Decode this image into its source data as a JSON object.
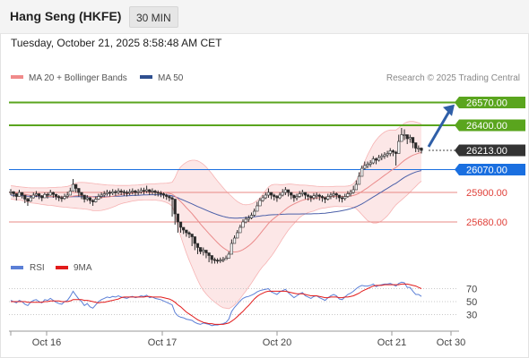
{
  "header": {
    "title": "Hang Seng (HKFE)",
    "period": "30 MIN"
  },
  "timestamp": "Tuesday, October 21, 2025 8:58:48 AM CET",
  "chart_data": {
    "type": "line",
    "legend": [
      {
        "name": "MA 20 + Bollinger Bands",
        "color": "#f08a8a"
      },
      {
        "name": "MA 50",
        "color": "#2f4f8f"
      }
    ],
    "credit": "Research © 2025 Trading Central",
    "x_labels": [
      "Oct 16",
      "Oct 17",
      "Oct 20",
      "Oct 21",
      "Oct 30"
    ],
    "ylim": [
      25500,
      26700
    ],
    "levels": [
      {
        "label": "26570.00",
        "value": 26570,
        "kind": "resistance",
        "color": "#5aa51e"
      },
      {
        "label": "26400.00",
        "value": 26400,
        "kind": "resistance",
        "color": "#5aa51e"
      },
      {
        "label": "26213.00",
        "value": 26213,
        "kind": "last",
        "color": "#333333"
      },
      {
        "label": "26070.00",
        "value": 26070,
        "kind": "pivot",
        "color": "#1a6fe0"
      },
      {
        "label": "25900.00",
        "value": 25900,
        "kind": "support",
        "color": "#e0413a"
      },
      {
        "label": "25680.00",
        "value": 25680,
        "kind": "support",
        "color": "#e0413a"
      }
    ],
    "price_close": [
      25905,
      25890,
      25870,
      25900,
      25880,
      25850,
      25835,
      25860,
      25880,
      25890,
      25875,
      25860,
      25885,
      25880,
      25900,
      25885,
      25870,
      25860,
      25855,
      25870,
      25880,
      25910,
      25960,
      25930,
      25900,
      25880,
      25850,
      25860,
      25840,
      25830,
      25850,
      25870,
      25880,
      25890,
      25900,
      25895,
      25905,
      25900,
      25910,
      25905,
      25900,
      25895,
      25905,
      25910,
      25900,
      25905,
      25915,
      25910,
      25920,
      25905,
      25910,
      25900,
      25895,
      25890,
      25880,
      25870,
      25860,
      25850,
      25740,
      25680,
      25640,
      25620,
      25600,
      25590,
      25570,
      25520,
      25490,
      25460,
      25470,
      25450,
      25430,
      25400,
      25395,
      25390,
      25395,
      25400,
      25410,
      25440,
      25520,
      25560,
      25600,
      25640,
      25680,
      25700,
      25710,
      25730,
      25760,
      25800,
      25840,
      25860,
      25880,
      25900,
      25880,
      25870,
      25860,
      25880,
      25900,
      25920,
      25900,
      25880,
      25860,
      25870,
      25890,
      25900,
      25880,
      25870,
      25860,
      25875,
      25880,
      25870,
      25860,
      25850,
      25870,
      25880,
      25890,
      25880,
      25860,
      25855,
      25870,
      25890,
      25900,
      25920,
      25960,
      26020,
      26080,
      26100,
      26110,
      26120,
      26150,
      26140,
      26160,
      26170,
      26180,
      26190,
      26210,
      26200,
      26190,
      26280,
      26330,
      26330,
      26300,
      26310,
      26270,
      26230,
      26230,
      26213
    ],
    "price_high": [
      25925,
      25910,
      25895,
      25920,
      25900,
      25870,
      25860,
      25880,
      25900,
      25910,
      25895,
      25880,
      25900,
      25900,
      25920,
      25905,
      25890,
      25880,
      25875,
      25890,
      25905,
      25935,
      26000,
      25960,
      25920,
      25900,
      25870,
      25880,
      25865,
      25850,
      25870,
      25890,
      25900,
      25910,
      25920,
      25915,
      25925,
      25920,
      25930,
      25925,
      25920,
      25915,
      25925,
      25930,
      25920,
      25925,
      25935,
      25935,
      25950,
      25925,
      25930,
      25920,
      25915,
      25910,
      25900,
      25890,
      25880,
      25870,
      25760,
      25700,
      25660,
      25640,
      25620,
      25610,
      25590,
      25540,
      25510,
      25480,
      25490,
      25470,
      25450,
      25420,
      25415,
      25410,
      25415,
      25420,
      25430,
      25460,
      25550,
      25580,
      25620,
      25660,
      25700,
      25720,
      25730,
      25750,
      25780,
      25830,
      25860,
      25880,
      25900,
      25930,
      25900,
      25890,
      25880,
      25900,
      25925,
      25940,
      25920,
      25900,
      25880,
      25890,
      25910,
      25920,
      25900,
      25890,
      25880,
      25895,
      25900,
      25890,
      25880,
      25870,
      25890,
      25900,
      25910,
      25900,
      25880,
      25875,
      25890,
      25910,
      25920,
      25950,
      25990,
      26050,
      26100,
      26130,
      26130,
      26140,
      26170,
      26160,
      26180,
      26190,
      26200,
      26210,
      26230,
      26220,
      26210,
      26330,
      26380,
      26370,
      26330,
      26330,
      26300,
      26250,
      26250,
      26235
    ],
    "price_low": [
      25880,
      25865,
      25840,
      25875,
      25855,
      25820,
      25800,
      25830,
      25855,
      25865,
      25850,
      25835,
      25860,
      25855,
      25875,
      25860,
      25845,
      25835,
      25830,
      25845,
      25855,
      25885,
      25920,
      25900,
      25870,
      25850,
      25825,
      25835,
      25815,
      25800,
      25825,
      25845,
      25855,
      25865,
      25875,
      25870,
      25880,
      25875,
      25885,
      25880,
      25875,
      25870,
      25880,
      25885,
      25875,
      25880,
      25890,
      25885,
      25895,
      25880,
      25885,
      25875,
      25870,
      25865,
      25855,
      25845,
      25835,
      25720,
      25660,
      25600,
      25600,
      25590,
      25570,
      25560,
      25500,
      25470,
      25440,
      25440,
      25430,
      25410,
      25380,
      25370,
      25370,
      25370,
      25375,
      25380,
      25400,
      25420,
      25470,
      25530,
      25570,
      25610,
      25650,
      25670,
      25680,
      25700,
      25720,
      25760,
      25800,
      25830,
      25850,
      25860,
      25850,
      25840,
      25830,
      25850,
      25870,
      25880,
      25870,
      25850,
      25830,
      25840,
      25860,
      25870,
      25850,
      25840,
      25830,
      25845,
      25850,
      25840,
      25830,
      25820,
      25840,
      25850,
      25860,
      25850,
      25830,
      25825,
      25840,
      25860,
      25870,
      25890,
      25920,
      25970,
      26040,
      26070,
      26080,
      26090,
      26110,
      26110,
      26130,
      26140,
      26150,
      26160,
      26170,
      26170,
      26100,
      26190,
      26280,
      26290,
      26260,
      26270,
      26230,
      26200,
      26200,
      26190
    ],
    "ma50": [
      25880,
      25879,
      25877,
      25876,
      25875,
      25874,
      25872,
      25871,
      25870,
      25870,
      25869,
      25868,
      25868,
      25867,
      25867,
      25867,
      25866,
      25866,
      25866,
      25866,
      25866,
      25867,
      25868,
      25869,
      25869,
      25869,
      25869,
      25869,
      25868,
      25868,
      25868,
      25868,
      25868,
      25869,
      25869,
      25870,
      25870,
      25871,
      25872,
      25873,
      25874,
      25875,
      25876,
      25877,
      25878,
      25879,
      25880,
      25881,
      25882,
      25883,
      25883,
      25883,
      25883,
      25882,
      25881,
      25880,
      25878,
      25875,
      25868,
      25860,
      25851,
      25842,
      25833,
      25824,
      25815,
      25805,
      25795,
      25786,
      25777,
      25768,
      25759,
      25750,
      25742,
      25734,
      25727,
      25721,
      25716,
      25712,
      25710,
      25709,
      25709,
      25710,
      25711,
      25713,
      25715,
      25717,
      25719,
      25721,
      25724,
      25727,
      25729,
      25731,
      25733,
      25734,
      25735,
      25736,
      25737,
      25738,
      25739,
      25739,
      25739,
      25739,
      25739,
      25740,
      25740,
      25740,
      25740,
      25741,
      25742,
      25743,
      25744,
      25745,
      25748,
      25751,
      25754,
      25757,
      25760,
      25764,
      25768,
      25773,
      25779,
      25786,
      25794,
      25804,
      25815,
      25827,
      25840,
      25853,
      25866,
      25879,
      25892,
      25905,
      25918,
      25931,
      25944,
      25957,
      25968,
      25983,
      25998,
      26012,
      26024,
      26035,
      26044,
      26052,
      26058,
      26063
    ],
    "ma20": [
      25900,
      25898,
      25895,
      25893,
      25890,
      25886,
      25882,
      25879,
      25877,
      25876,
      25874,
      25872,
      25871,
      25870,
      25870,
      25869,
      25868,
      25867,
      25866,
      25866,
      25867,
      25869,
      25873,
      25876,
      25877,
      25877,
      25875,
      25873,
      25870,
      25866,
      25864,
      25863,
      25863,
      25864,
      25866,
      25869,
      25872,
      25876,
      25880,
      25884,
      25887,
      25889,
      25892,
      25895,
      25897,
      25899,
      25900,
      25902,
      25903,
      25903,
      25904,
      25904,
      25903,
      25902,
      25900,
      25897,
      25893,
      25887,
      25872,
      25853,
      25832,
      25810,
      25787,
      25765,
      25742,
      25717,
      25691,
      25665,
      25640,
      25617,
      25593,
      25570,
      25548,
      25526,
      25506,
      25488,
      25474,
      25462,
      25458,
      25456,
      25458,
      25464,
      25474,
      25487,
      25502,
      25520,
      25541,
      25565,
      25591,
      25617,
      25643,
      25669,
      25690,
      25708,
      25724,
      25740,
      25757,
      25774,
      25790,
      25803,
      25814,
      25824,
      25834,
      25842,
      25847,
      25851,
      25853,
      25855,
      25858,
      25861,
      25863,
      25864,
      25866,
      25868,
      25870,
      25871,
      25870,
      25870,
      25870,
      25871,
      25873,
      25877,
      25884,
      25894,
      25907,
      25921,
      25935,
      25950,
      25966,
      25981,
      25996,
      26012,
      26028,
      26043,
      26059,
      26073,
      26086,
      26103,
      26122,
      26139,
      26153,
      26166,
      26177,
      26185,
      26192,
      26197
    ],
    "bb_upper": [
      25950,
      25948,
      25945,
      25942,
      25940,
      25938,
      25936,
      25935,
      25934,
      25934,
      25934,
      25934,
      25934,
      25935,
      25936,
      25937,
      25938,
      25939,
      25940,
      25942,
      25945,
      25952,
      25962,
      25970,
      25974,
      25975,
      25974,
      25972,
      25970,
      25967,
      25964,
      25962,
      25960,
      25958,
      25956,
      25955,
      25954,
      25953,
      25952,
      25952,
      25952,
      25952,
      25953,
      25954,
      25955,
      25956,
      25958,
      25960,
      25962,
      25963,
      25964,
      25965,
      25966,
      25967,
      25968,
      25969,
      25972,
      25976,
      26010,
      26060,
      26090,
      26110,
      26125,
      26135,
      26140,
      26140,
      26135,
      26125,
      26110,
      26090,
      26065,
      26040,
      26012,
      25985,
      25960,
      25935,
      25910,
      25890,
      25870,
      25850,
      25832,
      25820,
      25810,
      25808,
      25810,
      25815,
      25825,
      25840,
      25860,
      25885,
      25915,
      25940,
      25955,
      25960,
      25960,
      25958,
      25958,
      25960,
      25962,
      25962,
      25960,
      25957,
      25955,
      25955,
      25954,
      25952,
      25950,
      25948,
      25946,
      25945,
      25944,
      25943,
      25943,
      25944,
      25945,
      25946,
      25946,
      25946,
      25946,
      25948,
      25953,
      25965,
      25990,
      26030,
      26080,
      26130,
      26180,
      26220,
      26260,
      26290,
      26315,
      26335,
      26350,
      26360,
      26365,
      26365,
      26365,
      26380,
      26400,
      26415,
      26425,
      26430,
      26430,
      26425,
      26418,
      26410
    ],
    "bb_lower": [
      25850,
      25848,
      25845,
      25844,
      25840,
      25834,
      25828,
      25823,
      25820,
      25818,
      25814,
      25810,
      25808,
      25805,
      25804,
      25801,
      25798,
      25795,
      25792,
      25790,
      25789,
      25786,
      25784,
      25782,
      25780,
      25779,
      25776,
      25774,
      25770,
      25765,
      25764,
      25764,
      25766,
      25770,
      25776,
      25783,
      25790,
      25799,
      25808,
      25816,
      25822,
      25826,
      25831,
      25836,
      25839,
      25842,
      25842,
      25844,
      25844,
      25843,
      25844,
      25843,
      25840,
      25837,
      25832,
      25825,
      25814,
      25798,
      25734,
      25646,
      25574,
      25510,
      25449,
      25395,
      25344,
      25294,
      25247,
      25205,
      25170,
      25144,
      25121,
      25100,
      25084,
      25067,
      25052,
      25041,
      25038,
      25034,
      25046,
      25062,
      25084,
      25108,
      25138,
      25166,
      25194,
      25225,
      25257,
      25290,
      25322,
      25349,
      25371,
      25398,
      25425,
      25456,
      25488,
      25522,
      25556,
      25588,
      25618,
      25644,
      25668,
      25691,
      25713,
      25729,
      25740,
      25750,
      25756,
      25762,
      25770,
      25777,
      25782,
      25785,
      25789,
      25792,
      25795,
      25796,
      25794,
      25794,
      25794,
      25794,
      25793,
      25789,
      25778,
      25758,
      25734,
      25712,
      25690,
      25680,
      25672,
      25672,
      25677,
      25689,
      25706,
      25726,
      25753,
      25781,
      25807,
      25826,
      25844,
      25863,
      25881,
      25902,
      25924,
      25945,
      25966,
      25984
    ],
    "rsi": {
      "name": "RSI",
      "color": "#5b7fd6",
      "ma_name": "9MA",
      "ma_color": "#e21b1b",
      "levels": [
        70,
        50,
        30
      ],
      "ylim": [
        10,
        90
      ],
      "values": [
        52,
        50,
        48,
        52,
        50,
        46,
        44,
        49,
        52,
        53,
        50,
        48,
        53,
        52,
        55,
        52,
        49,
        47,
        46,
        50,
        52,
        58,
        66,
        60,
        54,
        50,
        44,
        47,
        42,
        40,
        45,
        50,
        53,
        55,
        57,
        56,
        58,
        57,
        59,
        57,
        56,
        55,
        57,
        58,
        56,
        57,
        59,
        58,
        60,
        56,
        57,
        55,
        54,
        53,
        51,
        49,
        47,
        45,
        33,
        28,
        26,
        25,
        23,
        22,
        21,
        18,
        16,
        15,
        17,
        16,
        15,
        13,
        14,
        14,
        15,
        16,
        18,
        23,
        35,
        41,
        46,
        51,
        55,
        57,
        58,
        60,
        62,
        65,
        67,
        68,
        69,
        70,
        65,
        63,
        61,
        65,
        67,
        69,
        64,
        60,
        56,
        59,
        62,
        64,
        59,
        57,
        55,
        58,
        59,
        56,
        54,
        52,
        56,
        59,
        61,
        59,
        54,
        53,
        57,
        61,
        63,
        66,
        70,
        73,
        75,
        74,
        74,
        75,
        77,
        73,
        75,
        76,
        77,
        77,
        78,
        76,
        74,
        78,
        80,
        79,
        72,
        72,
        66,
        61,
        61,
        58
      ],
      "ma_values": [
        50,
        50,
        50,
        50,
        50,
        50,
        49,
        49,
        49,
        49,
        49,
        49,
        50,
        50,
        51,
        51,
        51,
        51,
        50,
        50,
        50,
        51,
        53,
        53,
        53,
        53,
        52,
        52,
        51,
        50,
        49,
        48,
        49,
        49,
        50,
        51,
        52,
        53,
        54,
        56,
        57,
        57,
        57,
        57,
        57,
        57,
        57,
        57,
        58,
        58,
        57,
        57,
        57,
        57,
        56,
        55,
        54,
        52,
        49,
        45,
        42,
        38,
        34,
        31,
        28,
        25,
        22,
        20,
        18,
        17,
        16,
        16,
        15,
        15,
        15,
        15,
        16,
        17,
        20,
        23,
        27,
        31,
        35,
        40,
        44,
        49,
        54,
        58,
        61,
        63,
        65,
        66,
        66,
        66,
        66,
        66,
        66,
        66,
        65,
        64,
        63,
        62,
        62,
        62,
        61,
        60,
        59,
        59,
        59,
        58,
        57,
        56,
        56,
        57,
        57,
        57,
        56,
        56,
        57,
        57,
        58,
        59,
        61,
        63,
        66,
        68,
        70,
        72,
        74,
        75,
        75,
        75,
        76,
        76,
        76,
        76,
        76,
        76,
        77,
        77,
        77,
        76,
        75,
        74,
        72,
        70
      ]
    }
  }
}
